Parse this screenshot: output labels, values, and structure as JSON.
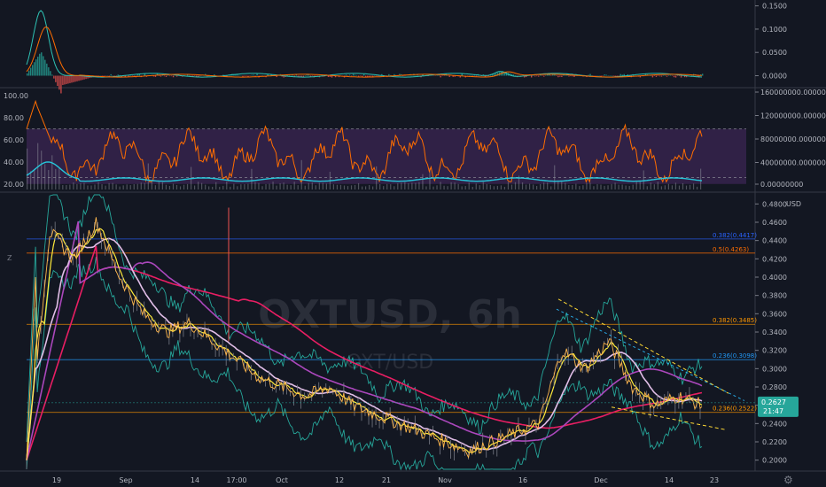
{
  "chart_data": [
    {
      "type": "line",
      "panel": "macd",
      "y_ticks": [
        "0.1500",
        "0.1000",
        "0.0500",
        "0.0000"
      ],
      "ylim": [
        -0.02,
        0.155
      ],
      "colors": {
        "macd": "#2ec4b6",
        "signal": "#ff6d00",
        "hist_up": "#26a69a",
        "hist_down": "#ef5350"
      }
    },
    {
      "type": "line",
      "panel": "rsi_volume",
      "left_ticks": [
        "100.00",
        "80.00",
        "60.00",
        "40.00",
        "20.00"
      ],
      "rsi_ylim": [
        15,
        105
      ],
      "band": [
        20,
        70
      ],
      "right_ticks": [
        "160000000.00000000",
        "120000000.00000000",
        "80000000.00000000",
        "40000000.00000000",
        "0.00000000"
      ],
      "colors": {
        "rsi": "#ff6d00",
        "band_fill": "#3b2553",
        "avg": "#26c6da"
      }
    },
    {
      "type": "line",
      "panel": "price",
      "symbol": "OXTUSD, 6h",
      "subtitle": "OXT/USD",
      "currency": "USD",
      "ylim": [
        0.19,
        0.49
      ],
      "y_ticks": [
        "0.4800",
        "0.4600",
        "0.4400",
        "0.4200",
        "0.4000",
        "0.3800",
        "0.3600",
        "0.3400",
        "0.3200",
        "0.3000",
        "0.2800",
        "0.2600",
        "0.2400",
        "0.2200",
        "0.2000"
      ],
      "x_ticks": [
        "19",
        "Sep",
        "14",
        "17:00",
        "Oct",
        "12",
        "21",
        "Nov",
        "16",
        "Dec",
        "14",
        "23"
      ],
      "fib_levels": [
        {
          "label": "0.382(0.4417)",
          "value": 0.4417,
          "color": "#2962ff"
        },
        {
          "label": "0.5(0.4263)",
          "value": 0.4263,
          "color": "#ff6d00"
        },
        {
          "label": "0.382(0.3485)",
          "value": 0.3485,
          "color": "#ff9800"
        },
        {
          "label": "0.236(0.3098)",
          "value": 0.3098,
          "color": "#2196f3"
        },
        {
          "label": "0.236(0.2522)",
          "value": 0.2522,
          "color": "#ff9800"
        }
      ],
      "last_price": "0.2627",
      "countdown": "21:47",
      "close_series": [
        0.2,
        0.45,
        0.42,
        0.46,
        0.4,
        0.36,
        0.34,
        0.35,
        0.33,
        0.31,
        0.29,
        0.28,
        0.27,
        0.28,
        0.26,
        0.25,
        0.24,
        0.23,
        0.22,
        0.21,
        0.22,
        0.23,
        0.24,
        0.32,
        0.3,
        0.33,
        0.28,
        0.26,
        0.27,
        0.26
      ],
      "colors": {
        "price": "#ffb74d",
        "ema_fast": "#ffeb3b",
        "ma_light": "#e1bee7",
        "ma_mid": "#ab47bc",
        "ma_long": "#e91e63",
        "bb": "#26a69a",
        "trend": "#fdd835"
      }
    }
  ],
  "toolbar": {
    "zoom_icon": "Z",
    "settings_icon": "⚙"
  }
}
